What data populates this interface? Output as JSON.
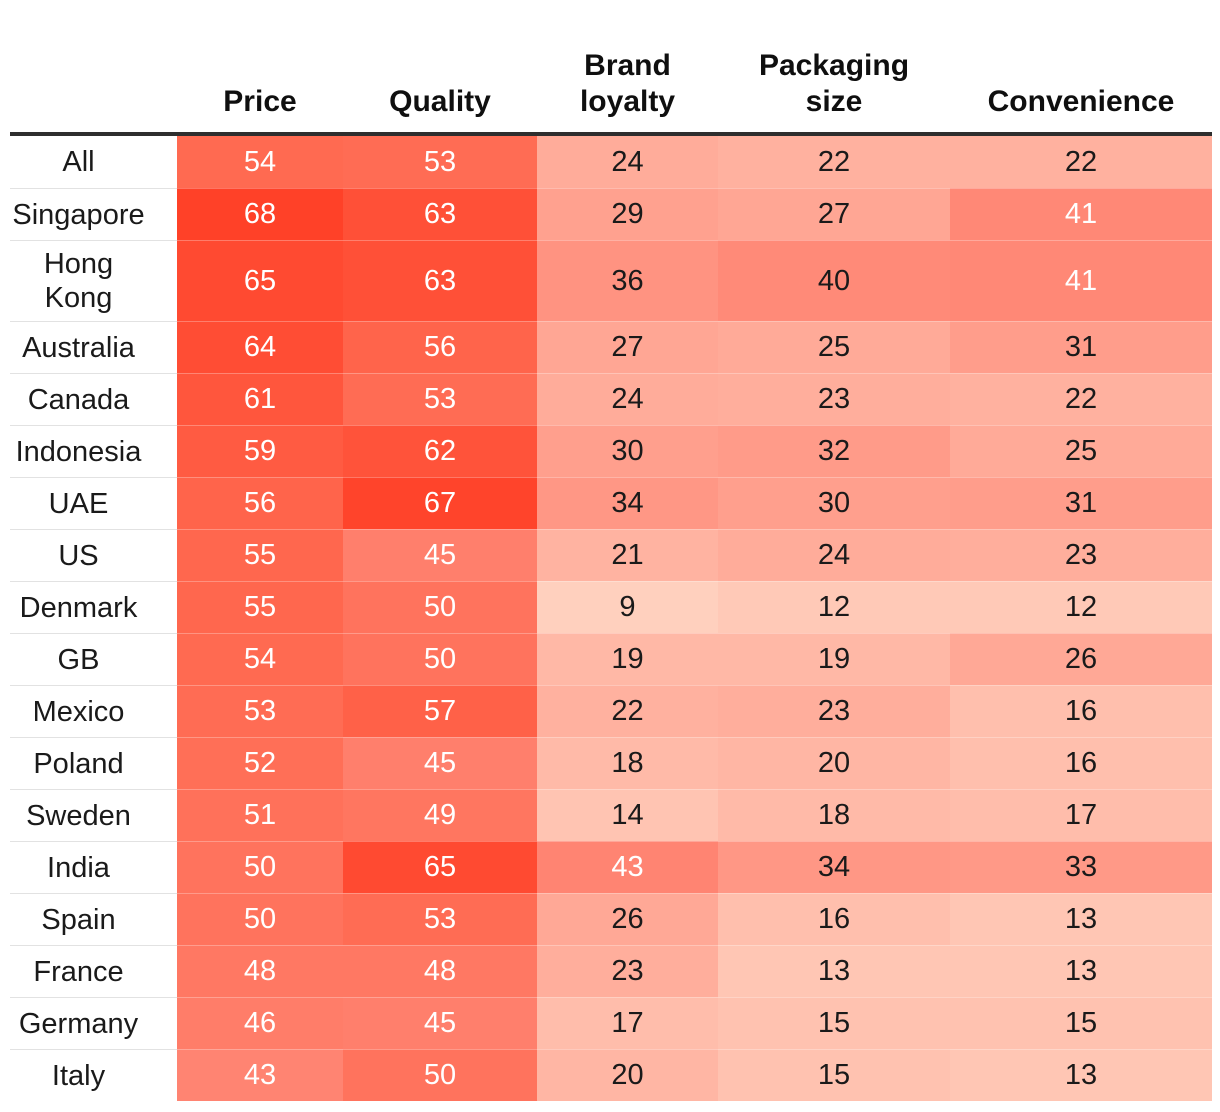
{
  "chart_data": {
    "type": "heatmap",
    "columns": [
      "Price",
      "Quality",
      "Brand loyalty",
      "Packaging size",
      "Convenience"
    ],
    "rows": [
      "All",
      "Singapore",
      "Hong\nKong",
      "Australia",
      "Canada",
      "Indonesia",
      "UAE",
      "US",
      "Denmark",
      "GB",
      "Mexico",
      "Poland",
      "Sweden",
      "India",
      "Spain",
      "France",
      "Germany",
      "Italy"
    ],
    "values": [
      [
        54,
        53,
        24,
        22,
        22
      ],
      [
        68,
        63,
        29,
        27,
        41
      ],
      [
        65,
        63,
        36,
        40,
        41
      ],
      [
        64,
        56,
        27,
        25,
        31
      ],
      [
        61,
        53,
        24,
        23,
        22
      ],
      [
        59,
        62,
        30,
        32,
        25
      ],
      [
        56,
        67,
        34,
        30,
        31
      ],
      [
        55,
        45,
        21,
        24,
        23
      ],
      [
        55,
        50,
        9,
        12,
        12
      ],
      [
        54,
        50,
        19,
        19,
        26
      ],
      [
        53,
        57,
        22,
        23,
        16
      ],
      [
        52,
        45,
        18,
        20,
        16
      ],
      [
        51,
        49,
        14,
        18,
        17
      ],
      [
        50,
        65,
        43,
        34,
        33
      ],
      [
        50,
        53,
        26,
        16,
        13
      ],
      [
        48,
        48,
        23,
        13,
        13
      ],
      [
        46,
        45,
        17,
        15,
        15
      ],
      [
        43,
        50,
        20,
        15,
        13
      ]
    ],
    "value_range": [
      9,
      68
    ],
    "legend": "none",
    "colors": {
      "scale_stops": [
        {
          "value": 9,
          "color": "#ffd0be"
        },
        {
          "value": 24,
          "color": "#ffac9a"
        },
        {
          "value": 43,
          "color": "#ff8472"
        },
        {
          "value": 54,
          "color": "#ff6a51"
        },
        {
          "value": 68,
          "color": "#ff4128"
        }
      ],
      "white_text_min": 41,
      "text_dark": "#1a1a1a",
      "text_light": "#ffffff",
      "header_text": "#0f0f0f",
      "header_rule": "#2e2e2e",
      "row_divider": "#e2e2e2"
    }
  }
}
